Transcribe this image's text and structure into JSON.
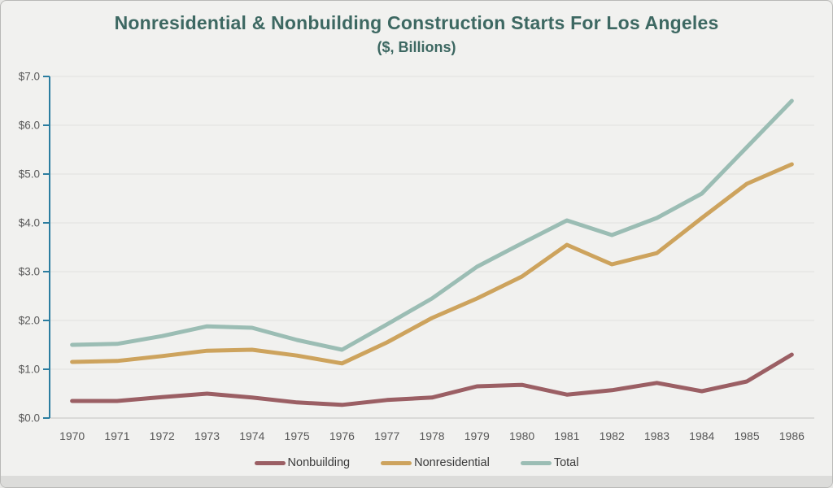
{
  "header": {
    "title": "Nonresidential & Nonbuilding Construction Starts For Los Angeles",
    "subtitle": "($, Billions)"
  },
  "chart_data": {
    "type": "line",
    "title": "Nonresidential & Nonbuilding Construction Starts For Los Angeles",
    "subtitle": "($, Billions)",
    "categories": [
      "1970",
      "1971",
      "1972",
      "1973",
      "1974",
      "1975",
      "1976",
      "1977",
      "1978",
      "1979",
      "1980",
      "1981",
      "1982",
      "1983",
      "1984",
      "1985",
      "1986"
    ],
    "series": [
      {
        "name": "Nonbuilding",
        "color": "#9b5f64",
        "values": [
          0.35,
          0.35,
          0.43,
          0.5,
          0.42,
          0.32,
          0.27,
          0.37,
          0.42,
          0.65,
          0.68,
          0.48,
          0.57,
          0.72,
          0.55,
          0.75,
          1.3
        ]
      },
      {
        "name": "Nonresidential",
        "color": "#cda35d",
        "values": [
          1.15,
          1.17,
          1.27,
          1.38,
          1.4,
          1.28,
          1.12,
          1.55,
          2.05,
          2.45,
          2.9,
          3.55,
          3.15,
          3.38,
          4.1,
          4.8,
          5.2
        ]
      },
      {
        "name": "Total",
        "color": "#9bbdb4",
        "values": [
          1.5,
          1.52,
          1.68,
          1.88,
          1.85,
          1.6,
          1.4,
          1.92,
          2.45,
          3.1,
          3.58,
          4.05,
          3.75,
          4.1,
          4.6,
          5.55,
          6.5
        ]
      }
    ],
    "ylim": [
      0,
      7
    ],
    "ytick_labels": [
      "$0.0",
      "$1.0",
      "$2.0",
      "$3.0",
      "$4.0",
      "$5.0",
      "$6.0",
      "$7.0"
    ],
    "grid": true,
    "legend_position": "bottom",
    "legend": [
      "Nonbuilding",
      "Nonresidential",
      "Total"
    ]
  },
  "colors": {
    "background": "#f1f1ef",
    "title_text": "#3d6862",
    "y_axis_line": "#2b7da0",
    "x_axis_line": "#d2d2d0",
    "gridline": "#e1e1df",
    "tick_label": "#595959",
    "legend_text": "#3a3a3a"
  }
}
